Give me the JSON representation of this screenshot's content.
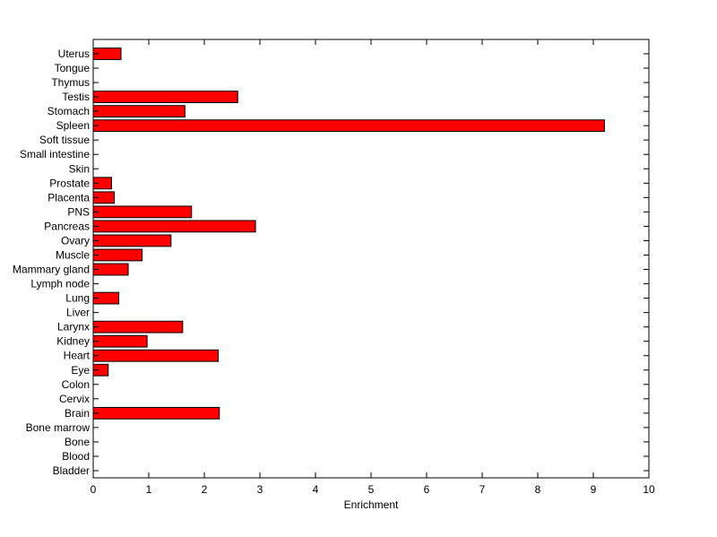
{
  "chart_data": {
    "type": "bar",
    "orientation": "horizontal",
    "categories": [
      "Uterus",
      "Tongue",
      "Thymus",
      "Testis",
      "Stomach",
      "Spleen",
      "Soft tissue",
      "Small intestine",
      "Skin",
      "Prostate",
      "Placenta",
      "PNS",
      "Pancreas",
      "Ovary",
      "Muscle",
      "Mammary gland",
      "Lymph node",
      "Lung",
      "Liver",
      "Larynx",
      "Kidney",
      "Heart",
      "Eye",
      "Colon",
      "Cervix",
      "Brain",
      "Bone marrow",
      "Bone",
      "Blood",
      "Bladder"
    ],
    "values": [
      0.5,
      0,
      0,
      2.6,
      1.65,
      9.2,
      0,
      0,
      0,
      0.33,
      0.38,
      1.77,
      2.92,
      1.4,
      0.88,
      0.63,
      0,
      0.46,
      0,
      1.61,
      0.97,
      2.25,
      0.27,
      0,
      0,
      2.27,
      0,
      0,
      0,
      0
    ],
    "xlabel": "Enrichment",
    "ylabel": "",
    "xlim": [
      0,
      10
    ],
    "xticks": [
      0,
      1,
      2,
      3,
      4,
      5,
      6,
      7,
      8,
      9,
      10
    ],
    "bar_color": "#ff0000",
    "grid": false
  }
}
